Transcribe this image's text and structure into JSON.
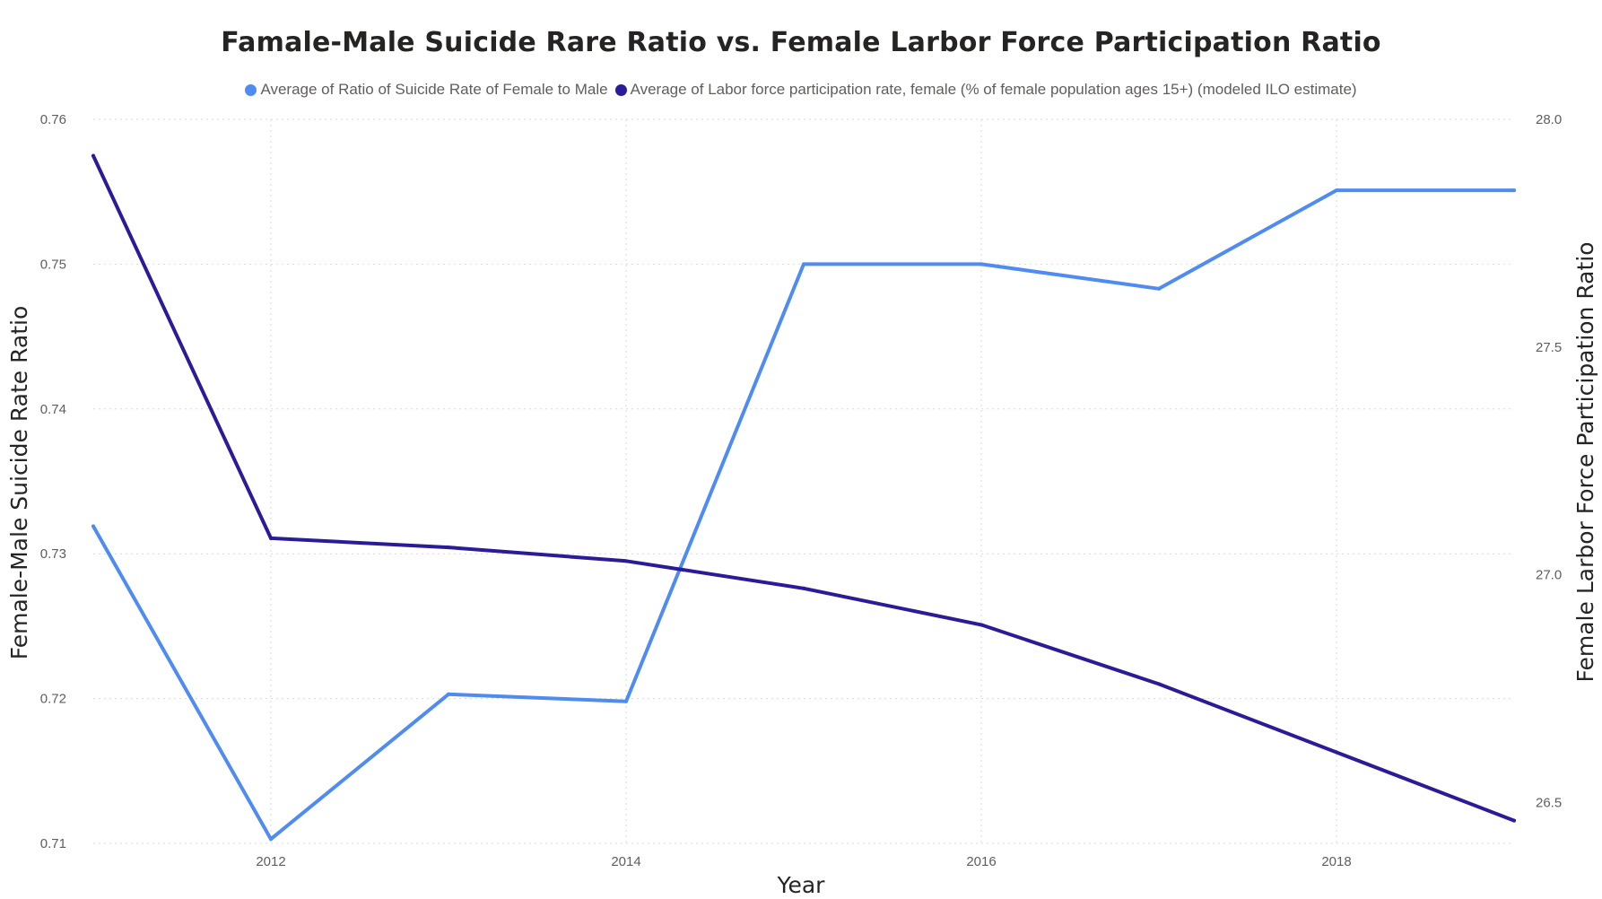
{
  "chart_data": {
    "type": "line",
    "title": "Famale-Male Suicide Rare Ratio vs. Female Larbor Force Participation Ratio",
    "xlabel": "Year",
    "ylabel": "Female-Male Suicide Rate Ratio",
    "y2label": "Female Larbor Force Participation Ratio",
    "x": [
      2011,
      2012,
      2013,
      2014,
      2015,
      2016,
      2017,
      2018,
      2019
    ],
    "xlim": [
      2011,
      2019
    ],
    "xticks": [
      "2012",
      "2014",
      "2016",
      "2018"
    ],
    "ylim": [
      0.71,
      0.76
    ],
    "yticks": [
      "0.71",
      "0.72",
      "0.73",
      "0.74",
      "0.75",
      "0.76"
    ],
    "y2lim": [
      26.41,
      28.0
    ],
    "y2ticks": [
      "26.5",
      "27.0",
      "27.5",
      "28.0"
    ],
    "grid": true,
    "legend_position": "top-center",
    "series": [
      {
        "name": "Average of Ratio of Suicide Rate of Female to Male",
        "axis": "left",
        "color": "#4f8cf2",
        "values": [
          0.7319,
          0.7103,
          0.7203,
          0.7198,
          0.75,
          0.75,
          0.7483,
          0.7551,
          0.7551
        ]
      },
      {
        "name": "Average of Labor force participation rate, female (% of female population ages 15+) (modeled ILO estimate)",
        "axis": "right",
        "color": "#2a1b98",
        "values": [
          27.92,
          27.08,
          27.06,
          27.03,
          26.97,
          26.89,
          26.76,
          26.61,
          26.46
        ]
      }
    ]
  }
}
